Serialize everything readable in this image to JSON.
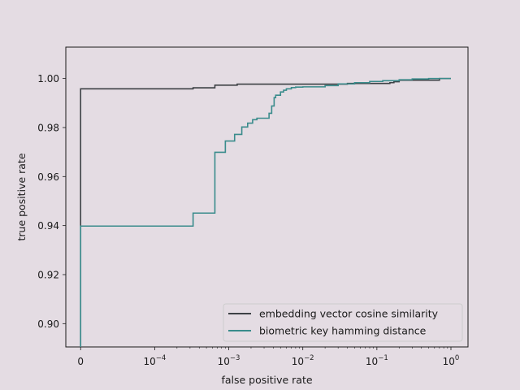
{
  "chart_data": {
    "type": "line",
    "title": "",
    "xlabel": "false positive rate",
    "ylabel": "true positive rate",
    "x_scale": "symlog",
    "xlim": [
      -2e-05,
      1.7
    ],
    "ylim": [
      0.8905,
      1.0128
    ],
    "x_ticks": [
      {
        "value": 0,
        "base": "0",
        "exp": ""
      },
      {
        "value": 0.0001,
        "base": "10",
        "exp": "−4"
      },
      {
        "value": 0.001,
        "base": "10",
        "exp": "−3"
      },
      {
        "value": 0.01,
        "base": "10",
        "exp": "−2"
      },
      {
        "value": 0.1,
        "base": "10",
        "exp": "−1"
      },
      {
        "value": 1,
        "base": "10",
        "exp": "0"
      }
    ],
    "y_ticks": [
      {
        "value": 0.9,
        "label": "0.90"
      },
      {
        "value": 0.92,
        "label": "0.92"
      },
      {
        "value": 0.94,
        "label": "0.94"
      },
      {
        "value": 0.96,
        "label": "0.96"
      },
      {
        "value": 0.98,
        "label": "0.98"
      },
      {
        "value": 1.0,
        "label": "1.00"
      }
    ],
    "legend_position": "lower-right",
    "series": [
      {
        "name": "embedding vector cosine similarity",
        "color": "#3d4145",
        "x": [
          0,
          0,
          0.00033,
          0.00033,
          0.00065,
          0.00065,
          0.0013,
          0.0013,
          0.04,
          0.04,
          0.15,
          0.15,
          0.17,
          0.17,
          0.2,
          0.2,
          0.7,
          0.7,
          1
        ],
        "y": [
          0.8905,
          0.9958,
          0.9958,
          0.9962,
          0.9962,
          0.9973,
          0.9973,
          0.9977,
          0.9977,
          0.998,
          0.998,
          0.9983,
          0.9983,
          0.9987,
          0.9987,
          0.9993,
          0.9993,
          1.0,
          1.0
        ]
      },
      {
        "name": "biometric key hamming distance",
        "color": "#3a8c8c",
        "x": [
          0,
          0,
          0.00033,
          0.00033,
          0.00065,
          0.00065,
          0.0009,
          0.0009,
          0.0012,
          0.0012,
          0.0015,
          0.0015,
          0.0018,
          0.0018,
          0.0021,
          0.0021,
          0.0024,
          0.0024,
          0.0035,
          0.0035,
          0.0038,
          0.0038,
          0.0041,
          0.0041,
          0.0043,
          0.0043,
          0.005,
          0.005,
          0.0055,
          0.0055,
          0.006,
          0.006,
          0.007,
          0.007,
          0.008,
          0.008,
          0.01,
          0.01,
          0.02,
          0.02,
          0.03,
          0.03,
          0.05,
          0.05,
          0.08,
          0.08,
          0.12,
          0.12,
          0.2,
          0.2,
          0.3,
          0.3,
          0.5,
          0.5,
          1
        ],
        "y": [
          0.8905,
          0.9398,
          0.9398,
          0.9451,
          0.9451,
          0.9699,
          0.9699,
          0.9745,
          0.9745,
          0.9772,
          0.9772,
          0.9802,
          0.9802,
          0.9818,
          0.9818,
          0.9832,
          0.9832,
          0.9838,
          0.9838,
          0.9858,
          0.9858,
          0.9888,
          0.9888,
          0.9922,
          0.9922,
          0.9932,
          0.9932,
          0.9945,
          0.9945,
          0.9952,
          0.9952,
          0.9958,
          0.9958,
          0.9963,
          0.9963,
          0.9965,
          0.9965,
          0.9966,
          0.9966,
          0.9971,
          0.9971,
          0.9978,
          0.9978,
          0.9983,
          0.9983,
          0.9988,
          0.9988,
          0.9991,
          0.9991,
          0.9995,
          0.9995,
          0.9998,
          0.9998,
          1.0,
          1.0
        ]
      }
    ]
  }
}
